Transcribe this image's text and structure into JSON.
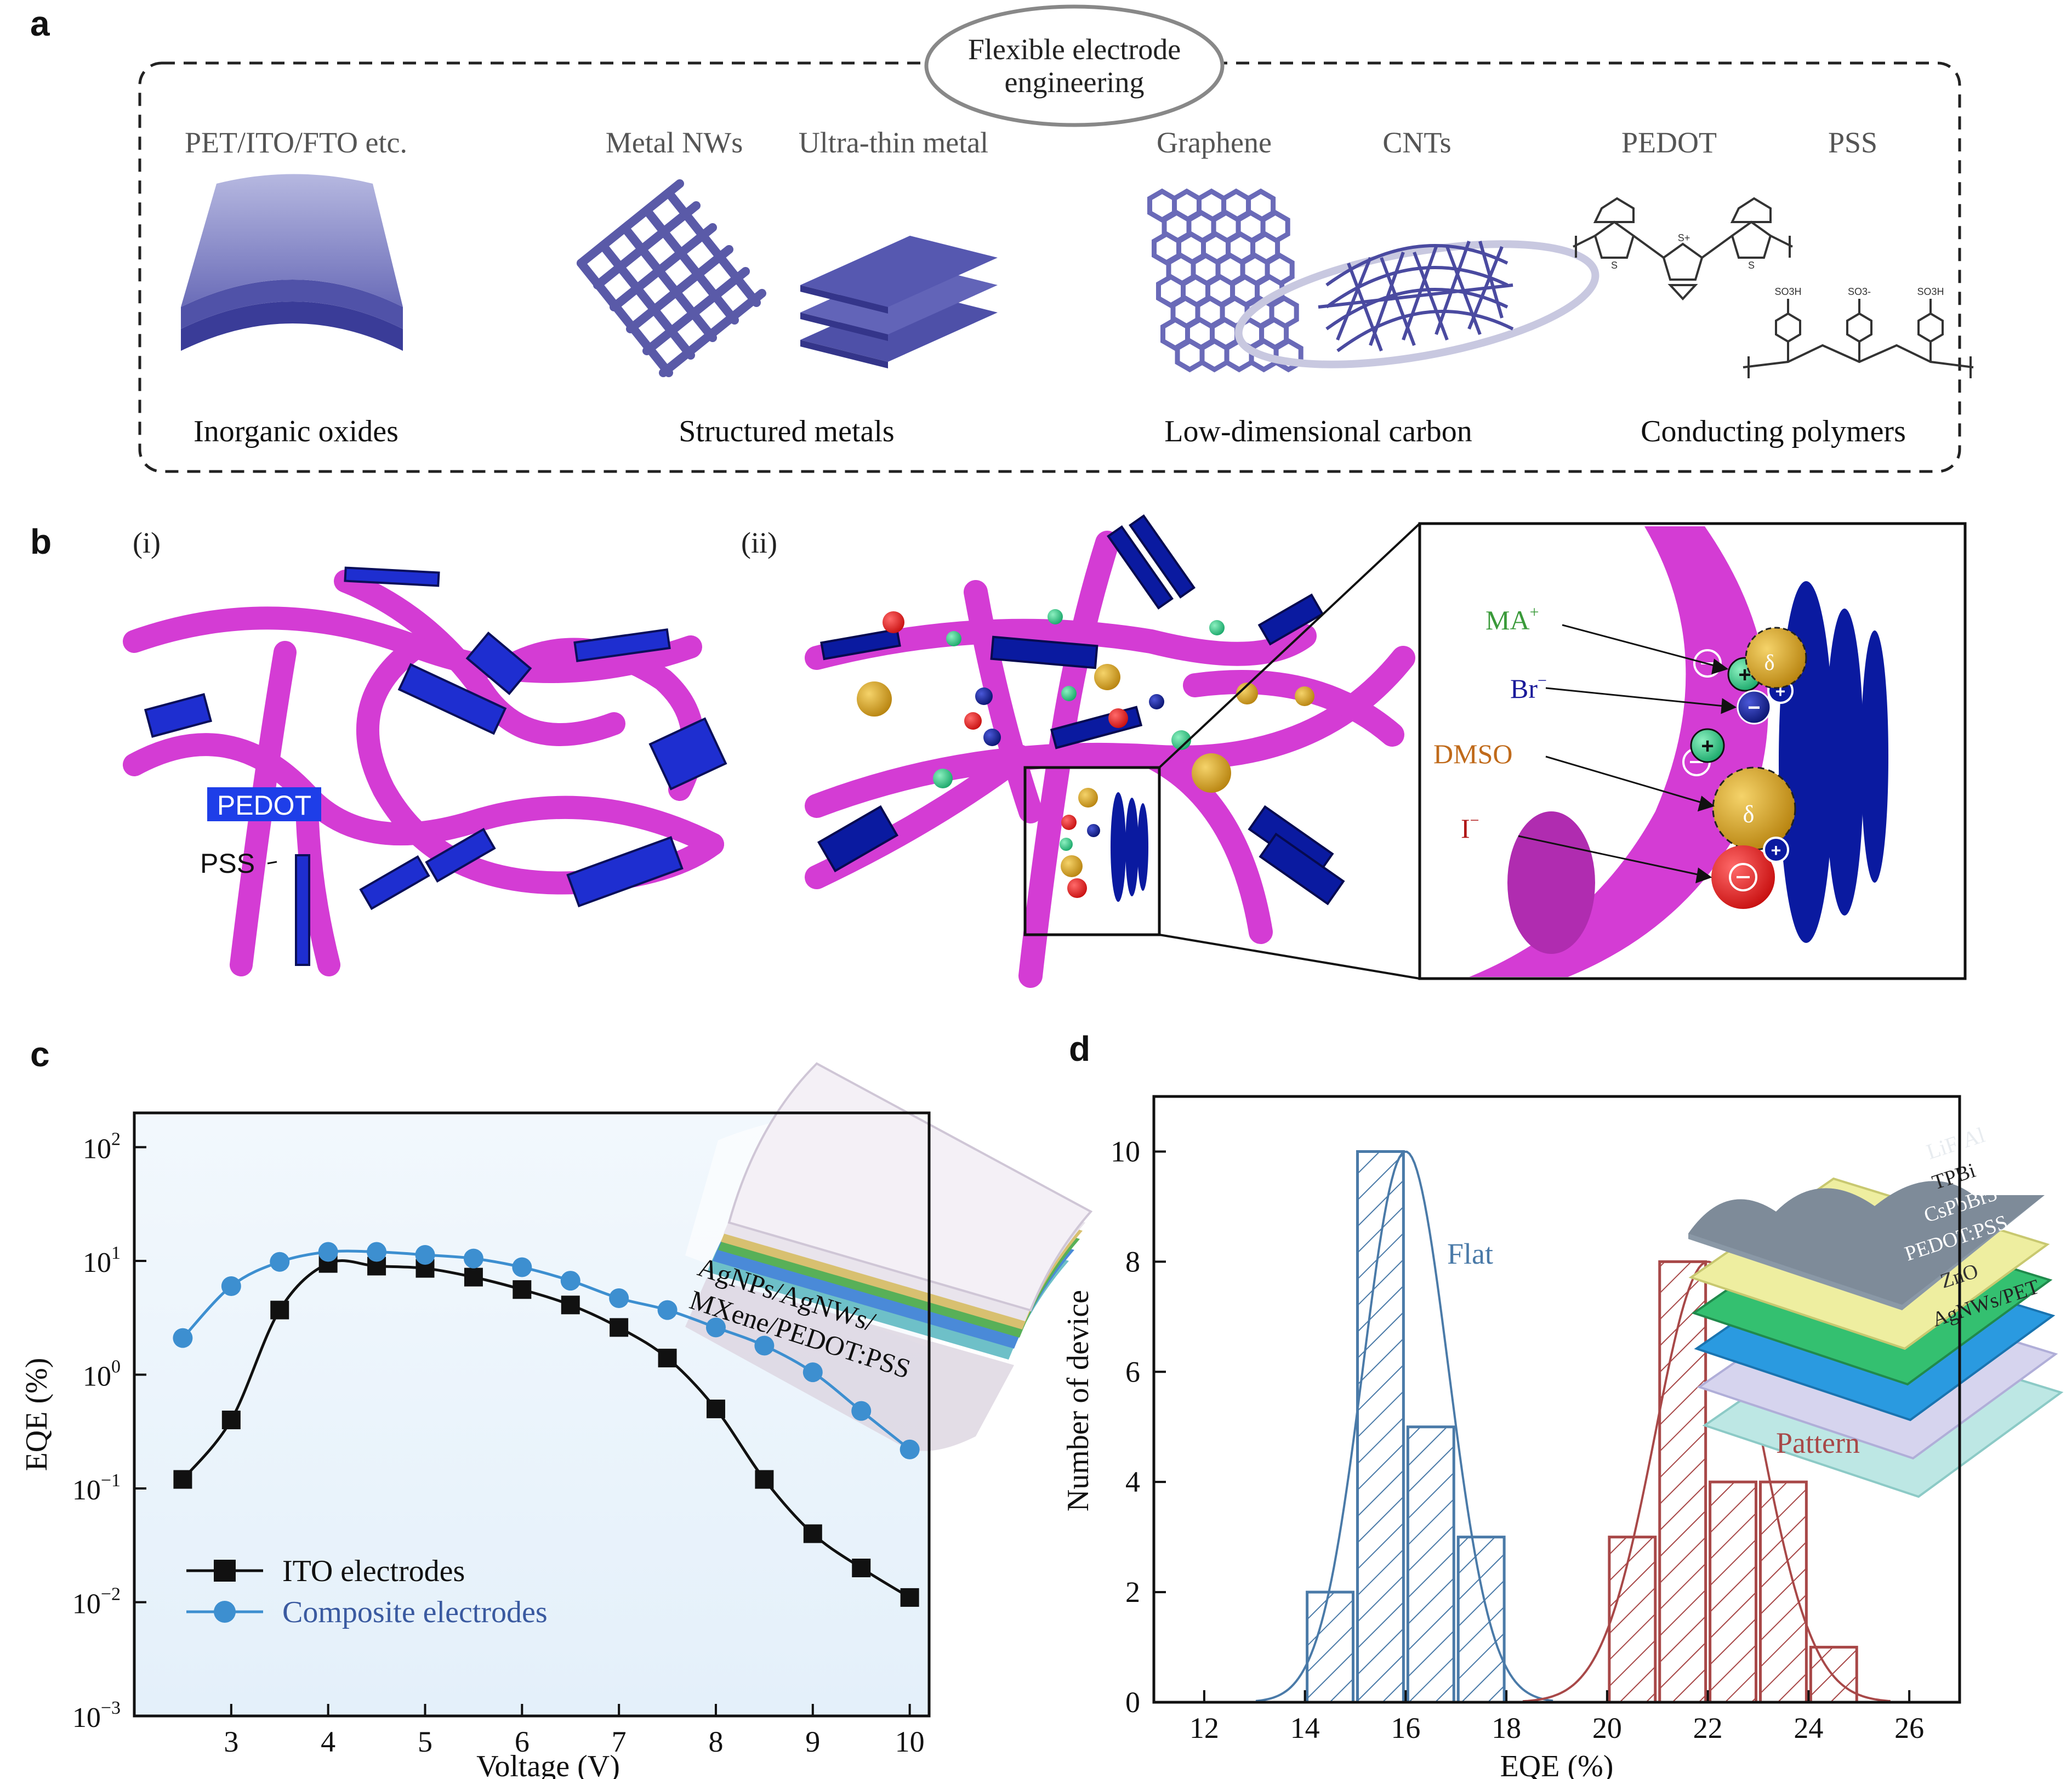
{
  "panel_letters": {
    "a": "a",
    "b": "b",
    "c": "c",
    "d": "d"
  },
  "panel_a": {
    "ellipse_line1": "Flexible electrode",
    "ellipse_line2": "engineering",
    "top_labels": [
      "PET/ITO/FTO etc.",
      "Metal NWs",
      "Ultra-thin metal",
      "Graphene",
      "CNTs",
      "PEDOT",
      "PSS"
    ],
    "bottom_labels": [
      "Inorganic oxides",
      "Structured metals",
      "Low-dimensional carbon",
      "Conducting polymers"
    ],
    "chem_labels": {
      "s_plus": "S+",
      "s": "S",
      "so3h": "SO3H",
      "so3": "SO3-"
    }
  },
  "panel_b": {
    "sub_i": "(i)",
    "sub_ii": "(ii)",
    "pedot": "PEDOT",
    "pss": "PSS",
    "ions": [
      {
        "label": "MA",
        "sup": "+",
        "color": "#3a9a3a"
      },
      {
        "label": "Br",
        "sup": "−",
        "color": "#1a1a9a"
      },
      {
        "label": "DMSO",
        "sup": "",
        "color": "#c06a1a"
      },
      {
        "label": "I",
        "sup": "−",
        "color": "#b01818"
      }
    ],
    "delta": "δ"
  },
  "chart_data": [
    {
      "type": "line",
      "panel": "c",
      "xlabel": "Voltage (V)",
      "ylabel": "EQE (%)",
      "yscale": "log",
      "xlim": [
        2.0,
        10.2
      ],
      "ylim": [
        0.001,
        200
      ],
      "x_ticks": [
        3,
        4,
        5,
        6,
        7,
        8,
        9,
        10
      ],
      "y_ticks": [
        {
          "value": 0.001,
          "base": "10",
          "exp": "−3"
        },
        {
          "value": 0.01,
          "base": "10",
          "exp": "−2"
        },
        {
          "value": 0.1,
          "base": "10",
          "exp": "−1"
        },
        {
          "value": 1,
          "base": "10",
          "exp": "0"
        },
        {
          "value": 10,
          "base": "10",
          "exp": "1"
        },
        {
          "value": 100,
          "base": "10",
          "exp": "2"
        }
      ],
      "series": [
        {
          "name": "ITO electrodes",
          "color": "#111111",
          "marker": "square",
          "x": [
            2.5,
            3,
            3.5,
            4,
            4.5,
            5,
            5.5,
            6,
            6.5,
            7,
            7.5,
            8,
            8.5,
            9,
            9.5,
            10
          ],
          "values": [
            0.12,
            0.4,
            3.7,
            9.5,
            9.0,
            8.6,
            7.2,
            5.6,
            4.1,
            2.6,
            1.4,
            0.5,
            0.12,
            0.04,
            0.02,
            0.011
          ]
        },
        {
          "name": "Composite electrodes",
          "color": "#3d8fd0",
          "marker": "circle",
          "x": [
            2.5,
            3,
            3.5,
            4,
            4.5,
            5,
            5.5,
            6,
            6.5,
            7,
            7.5,
            8,
            8.5,
            9,
            9.5,
            10
          ],
          "values": [
            2.1,
            6.0,
            9.8,
            12.0,
            12.0,
            11.3,
            10.5,
            8.8,
            6.7,
            4.7,
            3.7,
            2.6,
            1.8,
            1.05,
            0.48,
            0.22
          ]
        }
      ],
      "legend": "bottom-left",
      "inset_labels": [
        "AgNPs/AgNWs/",
        "MXene/PEDOT:PSS"
      ]
    },
    {
      "type": "bar",
      "panel": "d",
      "xlabel": "EQE (%)",
      "ylabel": "Number of device",
      "xlim": [
        11,
        27
      ],
      "ylim": [
        0,
        11
      ],
      "x_ticks": [
        12,
        14,
        16,
        18,
        20,
        22,
        24,
        26
      ],
      "y_ticks": [
        0,
        2,
        4,
        6,
        8,
        10
      ],
      "series": [
        {
          "name": "Flat",
          "color": "#4a7aa8",
          "bins": [
            [
              14,
              15
            ],
            [
              15,
              16
            ],
            [
              16,
              17
            ],
            [
              17,
              18
            ]
          ],
          "values": [
            2,
            10,
            5,
            3
          ],
          "fit": {
            "mean": 16.0,
            "sd": 0.85,
            "peak": 10
          }
        },
        {
          "name": "Pattern",
          "color": "#a84848",
          "bins": [
            [
              20,
              21
            ],
            [
              21,
              22
            ],
            [
              22,
              23
            ],
            [
              23,
              24
            ],
            [
              24,
              25
            ]
          ],
          "values": [
            3,
            8,
            4,
            4,
            1
          ],
          "fit": {
            "mean": 22.0,
            "sd": 1.05,
            "peak": 8
          }
        }
      ],
      "inset_labels": [
        "LiF/Al",
        "TPBi",
        "CsPbBr3",
        "PEDOT:PSS",
        "ZnO",
        "AgNWs/PET"
      ]
    }
  ]
}
